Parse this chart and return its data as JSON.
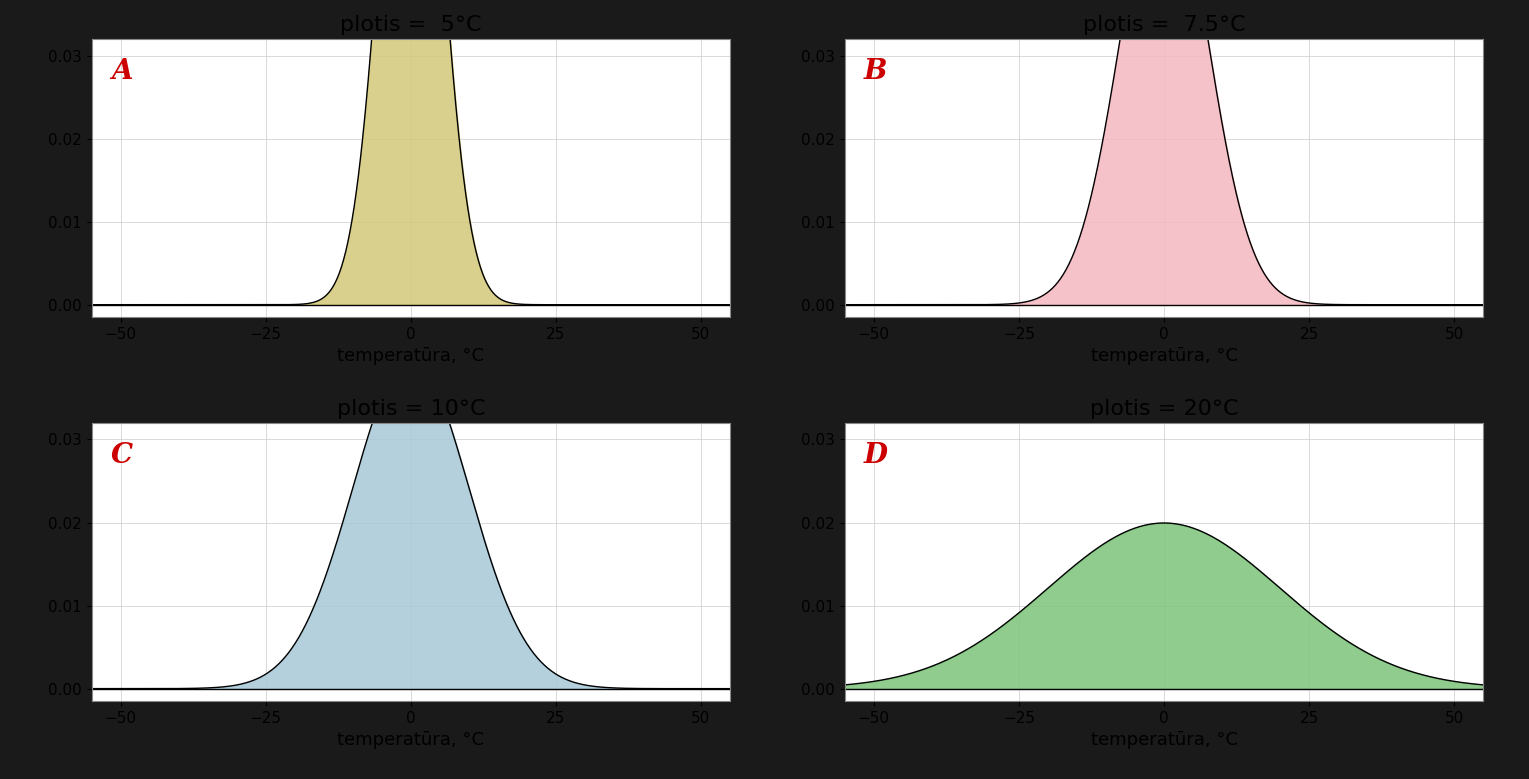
{
  "panels": [
    {
      "label": "A",
      "title": "plotis =  5°C",
      "sigma": 5,
      "fill_color": "#d4c87a",
      "fill_alpha": 0.85
    },
    {
      "label": "B",
      "title": "plotis =  7.5°C",
      "sigma": 7.5,
      "fill_color": "#f5b8c0",
      "fill_alpha": 0.85
    },
    {
      "label": "C",
      "title": "plotis = 10°C",
      "sigma": 10,
      "fill_color": "#a8c8d8",
      "fill_alpha": 0.85
    },
    {
      "label": "D",
      "title": "plotis = 20°C",
      "sigma": 20,
      "fill_color": "#7dc47a",
      "fill_alpha": 0.85
    }
  ],
  "mu": 0,
  "x_min": -60,
  "x_max": 60,
  "xlim": [
    -55,
    55
  ],
  "ylim": [
    -0.0015,
    0.032
  ],
  "yticks": [
    0.0,
    0.01,
    0.02,
    0.03
  ],
  "xticks": [
    -50,
    -25,
    0,
    25,
    50
  ],
  "xlabel": "temperatūra, °C",
  "outer_background": "#1a1a1a",
  "grid_color": "#cccccc",
  "label_color": "#cc0000",
  "label_fontsize": 20,
  "title_fontsize": 16,
  "tick_fontsize": 11,
  "xlabel_fontsize": 13
}
